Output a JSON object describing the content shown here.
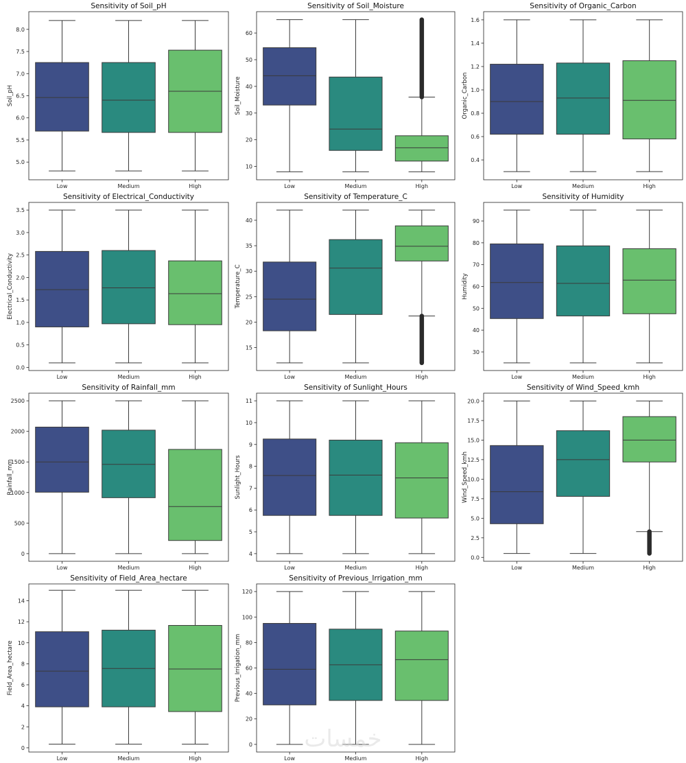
{
  "watermark": "خمسات",
  "colors": {
    "Low": "#3e4f87",
    "Medium": "#2a8a7f",
    "High": "#69bf6e",
    "line": "#3a3a3a"
  },
  "chart_data": [
    {
      "type": "box",
      "title": "Sensitivity of Soil_pH",
      "ylabel": "Soil_pH",
      "categories": [
        "Low",
        "Medium",
        "High"
      ],
      "ylim": [
        4.6,
        8.4
      ],
      "yticks": [
        5.0,
        5.5,
        6.0,
        6.5,
        7.0,
        7.5,
        8.0
      ],
      "tick_labels": [
        "5.0",
        "5.5",
        "6.0",
        "6.5",
        "7.0",
        "7.5",
        "8.0"
      ],
      "boxes": [
        {
          "whislo": 4.8,
          "q1": 5.7,
          "med": 6.46,
          "q3": 7.25,
          "whishi": 8.2
        },
        {
          "whislo": 4.8,
          "q1": 5.67,
          "med": 6.4,
          "q3": 7.25,
          "whishi": 8.2
        },
        {
          "whislo": 4.8,
          "q1": 5.67,
          "med": 6.6,
          "q3": 7.53,
          "whishi": 8.2
        }
      ]
    },
    {
      "type": "box",
      "title": "Sensitivity of Soil_Moisture",
      "ylabel": "Soil_Moisture",
      "categories": [
        "Low",
        "Medium",
        "High"
      ],
      "ylim": [
        5,
        68
      ],
      "yticks": [
        10,
        20,
        30,
        40,
        50,
        60
      ],
      "tick_labels": [
        "10",
        "20",
        "30",
        "40",
        "50",
        "60"
      ],
      "boxes": [
        {
          "whislo": 8,
          "q1": 33,
          "med": 44,
          "q3": 54.5,
          "whishi": 65
        },
        {
          "whislo": 8,
          "q1": 16,
          "med": 24,
          "q3": 43.5,
          "whishi": 65
        },
        {
          "whislo": 8,
          "q1": 12,
          "med": 17,
          "q3": 21.5,
          "whishi": 36,
          "outliers": [
            36,
            65
          ]
        }
      ]
    },
    {
      "type": "box",
      "title": "Sensitivity of Organic_Carbon",
      "ylabel": "Organic_Carbon",
      "categories": [
        "Low",
        "Medium",
        "High"
      ],
      "ylim": [
        0.23,
        1.67
      ],
      "yticks": [
        0.4,
        0.6,
        0.8,
        1.0,
        1.2,
        1.4,
        1.6
      ],
      "tick_labels": [
        "0.4",
        "0.6",
        "0.8",
        "1.0",
        "1.2",
        "1.4",
        "1.6"
      ],
      "boxes": [
        {
          "whislo": 0.3,
          "q1": 0.62,
          "med": 0.9,
          "q3": 1.22,
          "whishi": 1.6
        },
        {
          "whislo": 0.3,
          "q1": 0.62,
          "med": 0.93,
          "q3": 1.23,
          "whishi": 1.6
        },
        {
          "whislo": 0.3,
          "q1": 0.58,
          "med": 0.91,
          "q3": 1.25,
          "whishi": 1.6
        }
      ]
    },
    {
      "type": "box",
      "title": "Sensitivity of Electrical_Conductivity",
      "ylabel": "Electrical_Conductivity",
      "categories": [
        "Low",
        "Medium",
        "High"
      ],
      "ylim": [
        -0.07,
        3.67
      ],
      "yticks": [
        0.0,
        0.5,
        1.0,
        1.5,
        2.0,
        2.5,
        3.0,
        3.5
      ],
      "tick_labels": [
        "0.0",
        "0.5",
        "1.0",
        "1.5",
        "2.0",
        "2.5",
        "3.0",
        "3.5"
      ],
      "boxes": [
        {
          "whislo": 0.1,
          "q1": 0.9,
          "med": 1.73,
          "q3": 2.58,
          "whishi": 3.5
        },
        {
          "whislo": 0.1,
          "q1": 0.97,
          "med": 1.77,
          "q3": 2.6,
          "whishi": 3.5
        },
        {
          "whislo": 0.1,
          "q1": 0.95,
          "med": 1.64,
          "q3": 2.37,
          "whishi": 3.5
        }
      ]
    },
    {
      "type": "box",
      "title": "Sensitivity of Temperature_C",
      "ylabel": "Temperature_C",
      "categories": [
        "Low",
        "Medium",
        "High"
      ],
      "ylim": [
        10.5,
        43.5
      ],
      "yticks": [
        15,
        20,
        25,
        30,
        35,
        40
      ],
      "tick_labels": [
        "15",
        "20",
        "25",
        "30",
        "35",
        "40"
      ],
      "boxes": [
        {
          "whislo": 12,
          "q1": 18.3,
          "med": 24.5,
          "q3": 31.8,
          "whishi": 42
        },
        {
          "whislo": 12,
          "q1": 21.5,
          "med": 30.6,
          "q3": 36.2,
          "whishi": 42
        },
        {
          "whislo": 21.2,
          "q1": 32,
          "med": 34.9,
          "q3": 38.9,
          "whishi": 42,
          "outliers": [
            12,
            21.2
          ]
        }
      ]
    },
    {
      "type": "box",
      "title": "Sensitivity of Humidity",
      "ylabel": "Humidity",
      "categories": [
        "Low",
        "Medium",
        "High"
      ],
      "ylim": [
        21.5,
        98.5
      ],
      "yticks": [
        30,
        40,
        50,
        60,
        70,
        80,
        90
      ],
      "tick_labels": [
        "30",
        "40",
        "50",
        "60",
        "70",
        "80",
        "90"
      ],
      "boxes": [
        {
          "whislo": 25,
          "q1": 45.3,
          "med": 61.8,
          "q3": 79.5,
          "whishi": 95
        },
        {
          "whislo": 25,
          "q1": 46.5,
          "med": 61.4,
          "q3": 78.6,
          "whishi": 95
        },
        {
          "whislo": 25,
          "q1": 47.5,
          "med": 62.9,
          "q3": 77.3,
          "whishi": 95
        }
      ]
    },
    {
      "type": "box",
      "title": "Sensitivity of Rainfall_mm",
      "ylabel": "Rainfall_mm",
      "categories": [
        "Low",
        "Medium",
        "High"
      ],
      "ylim": [
        -125,
        2625
      ],
      "yticks": [
        0,
        500,
        1000,
        1500,
        2000,
        2500
      ],
      "tick_labels": [
        "0",
        "500",
        "1000",
        "1500",
        "2000",
        "2500"
      ],
      "boxes": [
        {
          "whislo": 0,
          "q1": 1005,
          "med": 1500,
          "q3": 2070,
          "whishi": 2500
        },
        {
          "whislo": 0,
          "q1": 915,
          "med": 1460,
          "q3": 2020,
          "whishi": 2500
        },
        {
          "whislo": 0,
          "q1": 215,
          "med": 770,
          "q3": 1705,
          "whishi": 2500
        }
      ]
    },
    {
      "type": "box",
      "title": "Sensitivity of Sunlight_Hours",
      "ylabel": "Sunlight_Hours",
      "categories": [
        "Low",
        "Medium",
        "High"
      ],
      "ylim": [
        3.65,
        11.35
      ],
      "yticks": [
        4,
        5,
        6,
        7,
        8,
        9,
        10,
        11
      ],
      "tick_labels": [
        "4",
        "5",
        "6",
        "7",
        "8",
        "9",
        "10",
        "11"
      ],
      "boxes": [
        {
          "whislo": 4,
          "q1": 5.75,
          "med": 7.58,
          "q3": 9.25,
          "whishi": 11
        },
        {
          "whislo": 4,
          "q1": 5.75,
          "med": 7.6,
          "q3": 9.2,
          "whishi": 11
        },
        {
          "whislo": 4,
          "q1": 5.63,
          "med": 7.47,
          "q3": 9.08,
          "whishi": 11
        }
      ]
    },
    {
      "type": "box",
      "title": "Sensitivity of Wind_Speed_kmh",
      "ylabel": "Wind_Speed_kmh",
      "categories": [
        "Low",
        "Medium",
        "High"
      ],
      "ylim": [
        -0.5,
        21.0
      ],
      "yticks": [
        0.0,
        2.5,
        5.0,
        7.5,
        10.0,
        12.5,
        15.0,
        17.5,
        20.0
      ],
      "tick_labels": [
        "0.0",
        "2.5",
        "5.0",
        "7.5",
        "10.0",
        "12.5",
        "15.0",
        "17.5",
        "20.0"
      ],
      "boxes": [
        {
          "whislo": 0.5,
          "q1": 4.3,
          "med": 8.4,
          "q3": 14.3,
          "whishi": 20
        },
        {
          "whislo": 0.5,
          "q1": 7.8,
          "med": 12.5,
          "q3": 16.2,
          "whishi": 20
        },
        {
          "whislo": 3.3,
          "q1": 12.2,
          "med": 15.0,
          "q3": 18.0,
          "whishi": 20,
          "outliers": [
            0.5,
            3.3
          ]
        }
      ]
    },
    {
      "type": "box",
      "title": "Sensitivity of Field_Area_hectare",
      "ylabel": "Field_Area_hectare",
      "categories": [
        "Low",
        "Medium",
        "High"
      ],
      "ylim": [
        -0.4,
        15.6
      ],
      "yticks": [
        0,
        2,
        4,
        6,
        8,
        10,
        12,
        14
      ],
      "tick_labels": [
        "0",
        "2",
        "4",
        "6",
        "8",
        "10",
        "12",
        "14"
      ],
      "boxes": [
        {
          "whislo": 0.35,
          "q1": 3.9,
          "med": 7.3,
          "q3": 11.05,
          "whishi": 15
        },
        {
          "whislo": 0.35,
          "q1": 3.9,
          "med": 7.55,
          "q3": 11.2,
          "whishi": 15
        },
        {
          "whislo": 0.35,
          "q1": 3.45,
          "med": 7.5,
          "q3": 11.65,
          "whishi": 15
        }
      ]
    },
    {
      "type": "box",
      "title": "Sensitivity of Previous_Irrigation_mm",
      "ylabel": "Previous_Irrigation_mm",
      "categories": [
        "Low",
        "Medium",
        "High"
      ],
      "ylim": [
        -6,
        126
      ],
      "yticks": [
        0,
        20,
        40,
        60,
        80,
        100,
        120
      ],
      "tick_labels": [
        "0",
        "20",
        "40",
        "60",
        "80",
        "100",
        "120"
      ],
      "boxes": [
        {
          "whislo": 0,
          "q1": 31,
          "med": 59,
          "q3": 95,
          "whishi": 120
        },
        {
          "whislo": 0,
          "q1": 34.5,
          "med": 62.5,
          "q3": 90.5,
          "whishi": 120
        },
        {
          "whislo": 0,
          "q1": 34.5,
          "med": 66.5,
          "q3": 89,
          "whishi": 120
        }
      ]
    }
  ]
}
